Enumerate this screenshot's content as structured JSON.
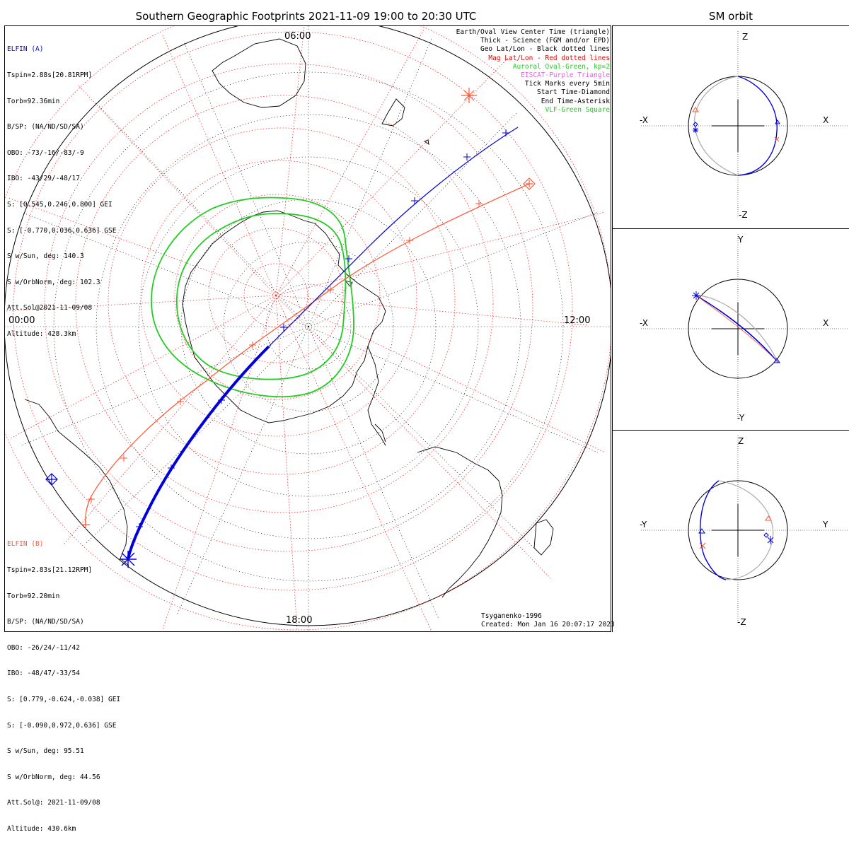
{
  "title": "Southern Geographic Footprints 2021-11-09 19:00 to 20:30 UTC",
  "sm_title": "SM orbit",
  "time_labels": {
    "top": "06:00",
    "left": "00:00",
    "right": "12:00",
    "bottom": "18:00"
  },
  "elfin_a": {
    "name": "ELFIN (A)",
    "color": "#0000dd",
    "lines": [
      "Tspin=2.88s[20.81RPM]",
      "Torb=92.36min",
      "B/SP: (NA/ND/SD/SA)",
      "OBO: -73/-16/-83/-9",
      "IBO: -43/29/-48/17",
      "S: [0.545,0.246,0.800] GEI",
      "S: [-0.770,0.036,0.636] GSE",
      "S w/Sun, deg: 140.3",
      "S w/OrbNorm, deg: 102.3",
      "Att.Sol@2021-11-09/08",
      "Altitude: 428.3km"
    ]
  },
  "elfin_b": {
    "name": "ELFIN (B)",
    "color": "#ff5533",
    "lines": [
      "Tspin=2.83s[21.12RPM]",
      "Torb=92.20min",
      "B/SP: (NA/ND/SD/SA)",
      "OBO: -26/24/-11/42",
      "IBO: -48/47/-33/54",
      "S: [0.779,-0.624,-0.038] GEI",
      "S: [-0.090,0.972,0.636] GSE",
      "S w/Sun, deg: 95.51",
      "S w/OrbNorm, deg: 44.56",
      "Att.Sol@: 2021-11-09/08",
      "Altitude: 430.6km"
    ]
  },
  "legend": [
    {
      "text": "Earth/Oval View Center Time (triangle)",
      "color": "#000000"
    },
    {
      "text": "Thick - Science (FGM and/or EPD)",
      "color": "#000000"
    },
    {
      "text": "Geo Lat/Lon - Black dotted lines",
      "color": "#000000"
    },
    {
      "text": "Mag Lat/Lon - Red dotted lines",
      "color": "#ee0000"
    },
    {
      "text": "Auroral Oval-Green, kp=2",
      "color": "#22cc22"
    },
    {
      "text": "EISCAT-Purple Triangle",
      "color": "#dd66dd"
    },
    {
      "text": "Tick Marks every 5min",
      "color": "#000000"
    },
    {
      "text": "Start Time-Diamond",
      "color": "#000000"
    },
    {
      "text": "End Time-Asterisk",
      "color": "#000000"
    },
    {
      "text": "VLF-Green Square",
      "color": "#22cc22"
    }
  ],
  "credits": {
    "model": "Tsyganenko-1996",
    "created": "Created: Mon Jan 16 20:07:17 2023"
  },
  "sm_panels": [
    {
      "vertical_pos": "Z",
      "vertical_neg": "-Z",
      "horizontal_neg": "-X",
      "horizontal_pos": "X"
    },
    {
      "vertical_pos": "Y",
      "vertical_neg": "-Y",
      "horizontal_neg": "-X",
      "horizontal_pos": "X"
    },
    {
      "vertical_pos": "Z",
      "vertical_neg": "-Z",
      "horizontal_neg": "-Y",
      "horizontal_pos": "Y"
    }
  ],
  "colors": {
    "auroral_oval": "#22cc22",
    "mag_grid": "#ee3333",
    "geo_grid": "#000000",
    "orbit_gray": "#aaaaaa"
  }
}
